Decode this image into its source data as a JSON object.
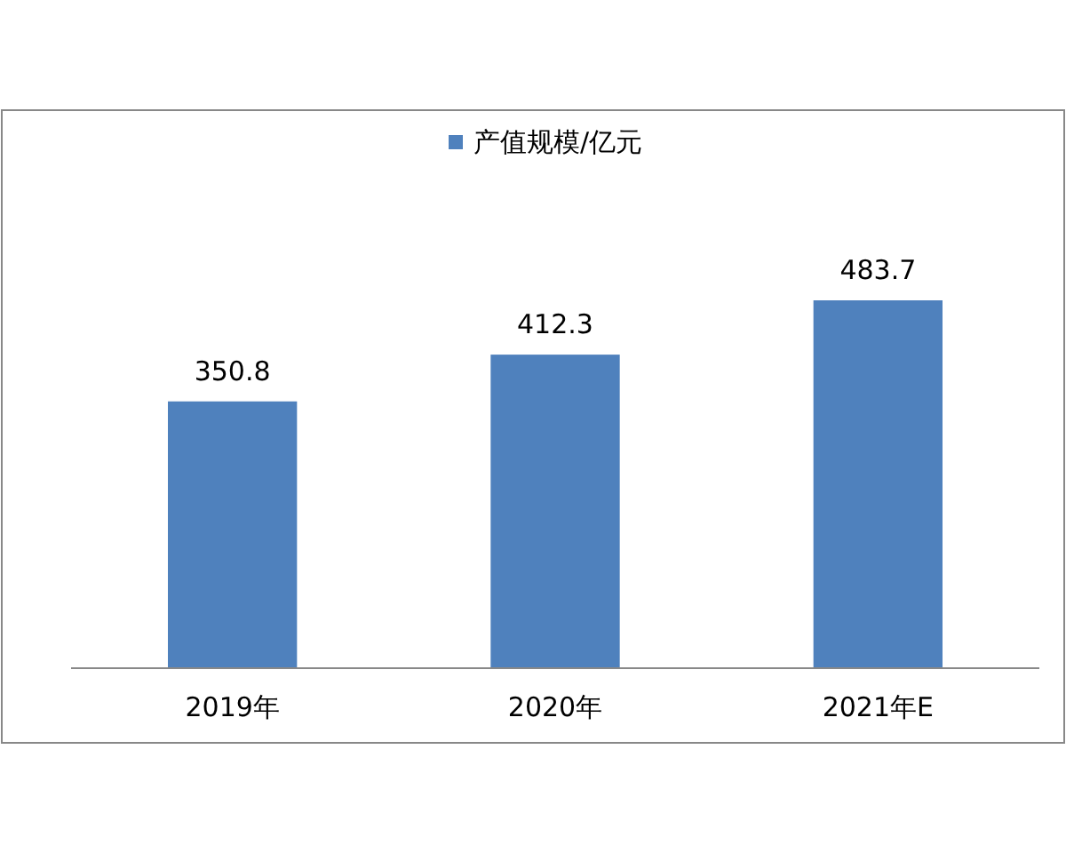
{
  "chart_data": {
    "type": "bar",
    "categories": [
      "2019年",
      "2020年",
      "2021年E"
    ],
    "series": [
      {
        "name": "产值规模/亿元",
        "color": "#4f81bd",
        "values": [
          350.8,
          412.3,
          483.7
        ]
      }
    ],
    "data_labels": true,
    "legend": "top"
  }
}
